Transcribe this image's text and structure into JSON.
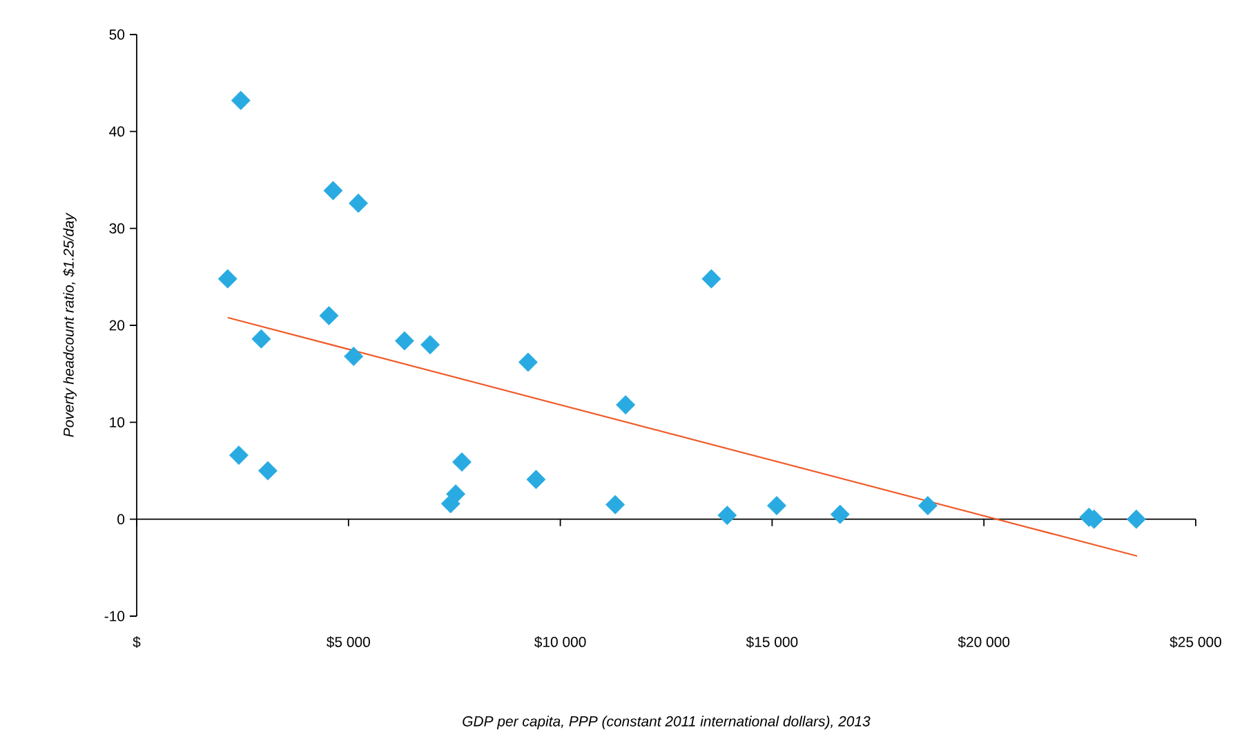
{
  "chart_data": {
    "type": "scatter",
    "xlabel": "GDP per capita, PPP (constant 2011 international dollars), 2013",
    "ylabel": "Poverty headcount ratio, $1.25/day",
    "xlim": [
      0,
      25000
    ],
    "ylim": [
      -10,
      50
    ],
    "xticks": [
      {
        "value": 0,
        "label": "$"
      },
      {
        "value": 5000,
        "label": "$5 000"
      },
      {
        "value": 10000,
        "label": "$10 000"
      },
      {
        "value": 15000,
        "label": "$15 000"
      },
      {
        "value": 20000,
        "label": "$20 000"
      },
      {
        "value": 25000,
        "label": "$25 000"
      }
    ],
    "yticks": [
      -10,
      0,
      10,
      20,
      30,
      40,
      50
    ],
    "marker": "diamond",
    "series": [
      {
        "color": "#29abe2",
        "x": [
          2457,
          4637,
          5232,
          2147,
          4538,
          2940,
          5120,
          6322,
          6927,
          9239,
          11541,
          2411,
          3095,
          7676,
          7531,
          7411,
          9427,
          11297,
          13566,
          13939,
          15108,
          16604,
          18675,
          22480,
          22600,
          23597
        ],
        "values": [
          43.2,
          33.9,
          32.6,
          24.8,
          21.0,
          18.6,
          16.8,
          18.4,
          18.0,
          16.2,
          11.8,
          6.6,
          5.0,
          5.9,
          2.6,
          1.6,
          4.1,
          1.5,
          24.8,
          0.4,
          1.4,
          0.5,
          1.4,
          0.2,
          0.0,
          0.0
        ]
      },
      {
        "type": "line",
        "color": "#f05a28",
        "marker": "none",
        "x": [
          2147,
          23617
        ],
        "values": [
          20.8,
          -3.8
        ]
      }
    ]
  }
}
